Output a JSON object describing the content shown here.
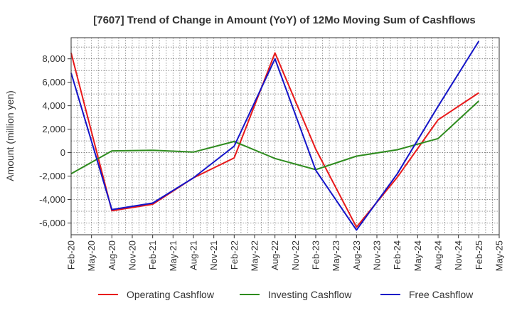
{
  "chart_data": {
    "type": "line",
    "title": "[7607]  Trend of Change in Amount (YoY) of 12Mo Moving Sum of Cashflows",
    "xlabel": "",
    "ylabel": "Amount (million yen)",
    "ylim": [
      -7000,
      9800
    ],
    "yticks": [
      -6000,
      -4000,
      -2000,
      0,
      2000,
      4000,
      6000,
      8000
    ],
    "ytick_labels": [
      "-6,000",
      "-4,000",
      "-2,000",
      "0",
      "2,000",
      "4,000",
      "6,000",
      "8,000"
    ],
    "x_labels": [
      "Feb-20",
      "May-20",
      "Aug-20",
      "Nov-20",
      "Feb-21",
      "May-21",
      "Aug-21",
      "Nov-21",
      "Feb-22",
      "May-22",
      "Aug-22",
      "Nov-22",
      "Feb-23",
      "May-23",
      "Aug-23",
      "Nov-23",
      "Feb-24",
      "May-24",
      "Aug-24",
      "Nov-24",
      "Feb-25",
      "May-25"
    ],
    "legend_position": "bottom",
    "grid": true,
    "series": [
      {
        "name": "Operating Cashflow",
        "color": "#e8191a",
        "points": [
          [
            0,
            8500
          ],
          [
            2,
            -4950
          ],
          [
            4,
            -4400
          ],
          [
            6,
            -2150
          ],
          [
            8,
            -450
          ],
          [
            10,
            8500
          ],
          [
            12,
            300
          ],
          [
            14,
            -6350
          ],
          [
            16,
            -2100
          ],
          [
            18,
            2800
          ],
          [
            20,
            5100
          ]
        ]
      },
      {
        "name": "Investing Cashflow",
        "color": "#2e8b1e",
        "points": [
          [
            0,
            -1800
          ],
          [
            2,
            150
          ],
          [
            4,
            200
          ],
          [
            6,
            50
          ],
          [
            8,
            950
          ],
          [
            10,
            -500
          ],
          [
            12,
            -1450
          ],
          [
            14,
            -300
          ],
          [
            16,
            250
          ],
          [
            18,
            1200
          ],
          [
            20,
            4400
          ]
        ]
      },
      {
        "name": "Free Cashflow",
        "color": "#1414c8",
        "points": [
          [
            0,
            6800
          ],
          [
            2,
            -4850
          ],
          [
            4,
            -4300
          ],
          [
            6,
            -2150
          ],
          [
            8,
            550
          ],
          [
            10,
            8000
          ],
          [
            12,
            -1500
          ],
          [
            14,
            -6600
          ],
          [
            16,
            -1800
          ],
          [
            18,
            3950
          ],
          [
            20,
            9500
          ]
        ]
      }
    ]
  }
}
